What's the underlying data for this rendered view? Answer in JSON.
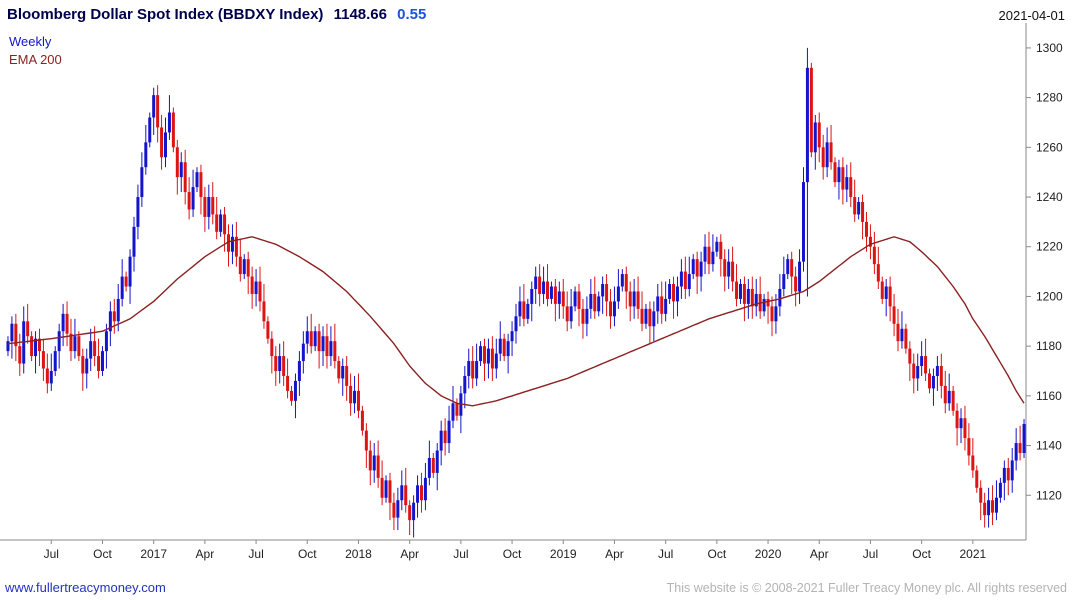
{
  "header": {
    "title": "Bloomberg Dollar Spot Index (BBDXY Index)",
    "price": "1148.66",
    "change": "0.55",
    "date": "2021-04-01"
  },
  "legend": {
    "timeframe": "Weekly",
    "overlay": "EMA 200"
  },
  "footer": {
    "link": "www.fullertreacymoney.com",
    "copyright": "This website is © 2008-2021 Fuller Treacy Money plc. All rights reserved"
  },
  "colors": {
    "up": "#1414cc",
    "down": "#dd1414",
    "ema": "#8b2121",
    "axis": "#8a8a8a",
    "text": "#1f1f1f",
    "title": "#00004d",
    "change": "#1a53d9",
    "date": "#111111",
    "link": "#2233bb",
    "muted": "#b3b3b3"
  },
  "chart_data": {
    "type": "candlestick",
    "title": "Bloomberg Dollar Spot Index (BBDXY Index)",
    "timeframe": "Weekly",
    "overlay": "EMA 200",
    "last_price": 1148.66,
    "change": 0.55,
    "as_of_date": "2021-04-01",
    "y_axis": {
      "ticks": [
        1120,
        1140,
        1160,
        1180,
        1200,
        1220,
        1240,
        1260,
        1280,
        1300
      ],
      "range": [
        1102,
        1306
      ]
    },
    "x_axis": {
      "labels": [
        {
          "text": "Jul",
          "week": 11
        },
        {
          "text": "Oct",
          "week": 24
        },
        {
          "text": "2017",
          "week": 37
        },
        {
          "text": "Apr",
          "week": 50
        },
        {
          "text": "Jul",
          "week": 63
        },
        {
          "text": "Oct",
          "week": 76
        },
        {
          "text": "2018",
          "week": 89
        },
        {
          "text": "Apr",
          "week": 102
        },
        {
          "text": "Jul",
          "week": 115
        },
        {
          "text": "Oct",
          "week": 128
        },
        {
          "text": "2019",
          "week": 141
        },
        {
          "text": "Apr",
          "week": 154
        },
        {
          "text": "Jul",
          "week": 167
        },
        {
          "text": "Oct",
          "week": 180
        },
        {
          "text": "2020",
          "week": 193
        },
        {
          "text": "Apr",
          "week": 206
        },
        {
          "text": "Jul",
          "week": 219
        },
        {
          "text": "Oct",
          "week": 232
        },
        {
          "text": "2021",
          "week": 245
        }
      ]
    },
    "first_open": 1178,
    "weekly_closes": [
      1182,
      1189,
      1180,
      1173,
      1190,
      1184,
      1176,
      1183,
      1178,
      1171,
      1165,
      1170,
      1178,
      1186,
      1193,
      1185,
      1178,
      1184,
      1176,
      1169,
      1175,
      1182,
      1176,
      1170,
      1178,
      1186,
      1194,
      1190,
      1199,
      1208,
      1204,
      1216,
      1228,
      1240,
      1252,
      1262,
      1272,
      1281,
      1268,
      1256,
      1266,
      1274,
      1260,
      1248,
      1254,
      1242,
      1235,
      1244,
      1250,
      1240,
      1232,
      1240,
      1233,
      1226,
      1233,
      1225,
      1218,
      1224,
      1216,
      1209,
      1215,
      1208,
      1201,
      1206,
      1198,
      1190,
      1183,
      1176,
      1170,
      1176,
      1168,
      1162,
      1158,
      1166,
      1174,
      1181,
      1186,
      1180,
      1186,
      1178,
      1184,
      1176,
      1182,
      1174,
      1167,
      1172,
      1164,
      1157,
      1162,
      1154,
      1146,
      1138,
      1130,
      1136,
      1127,
      1119,
      1126,
      1117,
      1111,
      1118,
      1124,
      1116,
      1110,
      1117,
      1124,
      1118,
      1127,
      1135,
      1129,
      1138,
      1146,
      1141,
      1150,
      1157,
      1152,
      1161,
      1168,
      1174,
      1167,
      1174,
      1180,
      1173,
      1179,
      1171,
      1177,
      1183,
      1176,
      1182,
      1186,
      1192,
      1198,
      1191,
      1197,
      1203,
      1208,
      1201,
      1206,
      1199,
      1204,
      1197,
      1202,
      1196,
      1190,
      1196,
      1202,
      1195,
      1189,
      1195,
      1201,
      1194,
      1200,
      1205,
      1198,
      1192,
      1198,
      1204,
      1209,
      1202,
      1196,
      1202,
      1195,
      1189,
      1195,
      1188,
      1194,
      1200,
      1193,
      1199,
      1205,
      1198,
      1204,
      1210,
      1203,
      1209,
      1215,
      1208,
      1214,
      1220,
      1213,
      1218,
      1222,
      1215,
      1208,
      1214,
      1206,
      1199,
      1205,
      1197,
      1203,
      1196,
      1201,
      1194,
      1199,
      1196,
      1190,
      1196,
      1203,
      1209,
      1215,
      1208,
      1202,
      1214,
      1246,
      1292,
      1258,
      1270,
      1260,
      1252,
      1262,
      1254,
      1246,
      1252,
      1243,
      1248,
      1240,
      1233,
      1238,
      1230,
      1224,
      1220,
      1213,
      1206,
      1199,
      1204,
      1196,
      1189,
      1182,
      1187,
      1179,
      1173,
      1167,
      1172,
      1176,
      1169,
      1163,
      1168,
      1172,
      1164,
      1157,
      1162,
      1154,
      1147,
      1151,
      1143,
      1136,
      1130,
      1123,
      1117,
      1112,
      1118,
      1113,
      1119,
      1125,
      1131,
      1126,
      1134,
      1141,
      1137,
      1148.66
    ],
    "wick_overrides": {
      "98": {
        "low": 1106
      },
      "102": {
        "low": 1104
      },
      "203": {
        "high": 1300,
        "low": 1200
      },
      "248": {
        "low": 1107
      },
      "250": {
        "low": 1108
      }
    },
    "ema_points": [
      [
        0,
        1181
      ],
      [
        11,
        1183
      ],
      [
        24,
        1186
      ],
      [
        31,
        1191
      ],
      [
        37,
        1198
      ],
      [
        43,
        1207
      ],
      [
        50,
        1216
      ],
      [
        56,
        1222
      ],
      [
        62,
        1224
      ],
      [
        68,
        1221
      ],
      [
        74,
        1216
      ],
      [
        80,
        1210
      ],
      [
        86,
        1202
      ],
      [
        92,
        1192
      ],
      [
        98,
        1181
      ],
      [
        102,
        1172
      ],
      [
        106,
        1165
      ],
      [
        110,
        1160
      ],
      [
        114,
        1157
      ],
      [
        118,
        1156
      ],
      [
        124,
        1158
      ],
      [
        130,
        1161
      ],
      [
        136,
        1164
      ],
      [
        142,
        1167
      ],
      [
        148,
        1171
      ],
      [
        154,
        1175
      ],
      [
        160,
        1179
      ],
      [
        166,
        1183
      ],
      [
        172,
        1187
      ],
      [
        178,
        1191
      ],
      [
        184,
        1194
      ],
      [
        190,
        1197
      ],
      [
        196,
        1199
      ],
      [
        202,
        1202
      ],
      [
        206,
        1206
      ],
      [
        210,
        1211
      ],
      [
        214,
        1216
      ],
      [
        219,
        1221
      ],
      [
        225,
        1224
      ],
      [
        229,
        1222
      ],
      [
        232,
        1218
      ],
      [
        236,
        1212
      ],
      [
        240,
        1204
      ],
      [
        243,
        1197
      ],
      [
        245,
        1191
      ],
      [
        248,
        1184
      ],
      [
        251,
        1176
      ],
      [
        254,
        1168
      ],
      [
        256,
        1162
      ],
      [
        258,
        1157
      ]
    ]
  }
}
